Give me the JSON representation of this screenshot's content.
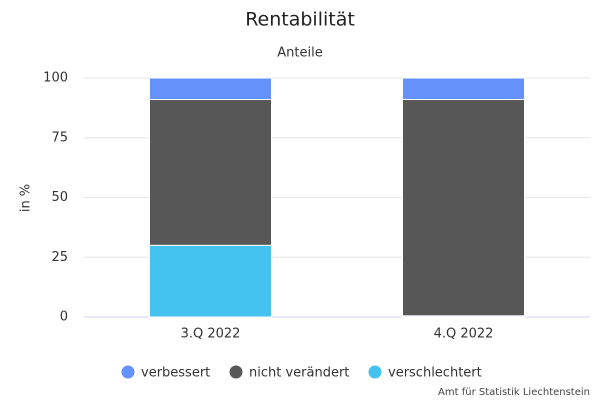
{
  "chart_data": {
    "type": "stacked_bar",
    "title": "Rentabilität",
    "subtitle": "Anteile",
    "y_label": "in %",
    "categories": [
      "3.Q 2022",
      "4.Q 2022"
    ],
    "series": [
      {
        "name": "verbessert",
        "color": "#6591fa",
        "values": [
          9,
          9
        ]
      },
      {
        "name": "nicht verändert",
        "color": "#575757",
        "values": [
          61,
          90.5
        ]
      },
      {
        "name": "verschlechtert",
        "color": "#45c3f0",
        "values": [
          30,
          0.5
        ]
      }
    ],
    "ylim": [
      0,
      100
    ],
    "yticks": [
      0,
      25,
      50,
      75,
      100
    ],
    "grid": true,
    "credit": "Amt für Statistik Liechtenstein"
  }
}
